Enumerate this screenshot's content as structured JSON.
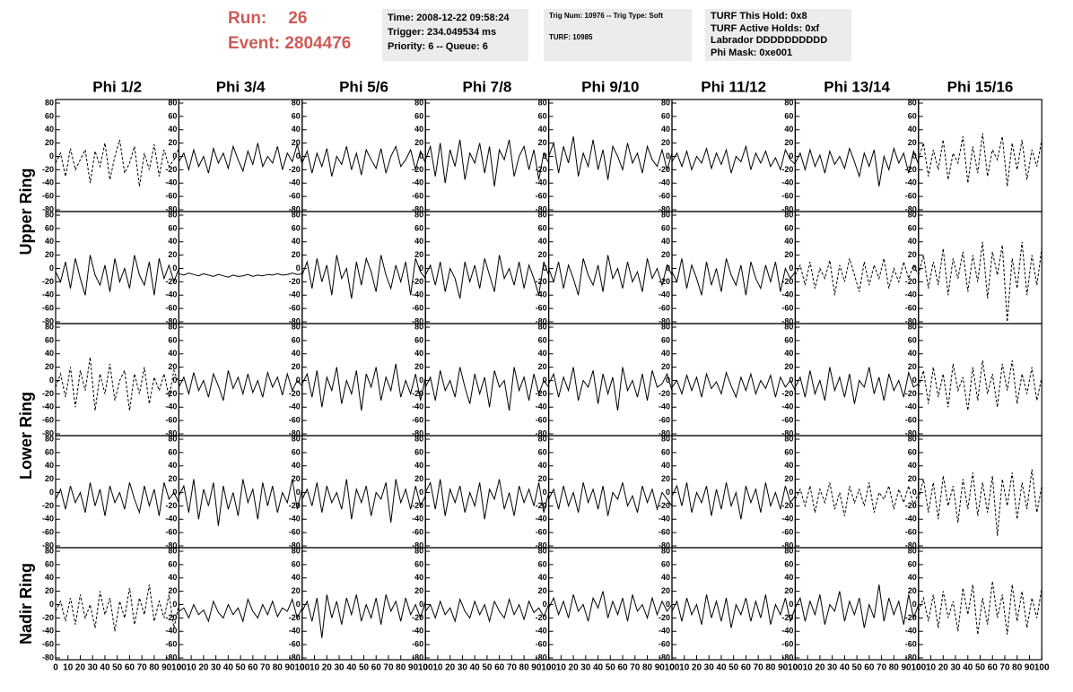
{
  "header": {
    "run_label": "Run:",
    "run": "26",
    "event_label": "Event:",
    "event": "2804476",
    "box1": [
      "Time: 2008-12-22 09:58:24",
      "Trigger: 234.049534 ms",
      "Priority: 6 -- Queue: 6"
    ],
    "box2": [
      "Trig Num: 10976 -- Trig Type: Soft",
      "TURF: 10985"
    ],
    "box3": [
      "TURF This Hold: 0x8",
      "TURF Active Holds: 0xf",
      "Labrador DDDDDDDDDD",
      "Phi Mask: 0xe001"
    ]
  },
  "chart_data": {
    "type": "line",
    "columns": [
      "Phi 1/2",
      "Phi 3/4",
      "Phi 5/6",
      "Phi 7/8",
      "Phi 9/10",
      "Phi 11/12",
      "Phi 13/14",
      "Phi 15/16"
    ],
    "rings": [
      "Upper Ring",
      "Lower Ring",
      "Nadir Ring"
    ],
    "color": "#000000",
    "xlim": [
      0,
      100
    ],
    "xticks": [
      0,
      10,
      20,
      30,
      40,
      50,
      60,
      70,
      80,
      90,
      100
    ],
    "ylim": [
      -80,
      80
    ],
    "yticks": [
      -80,
      -60,
      -40,
      -20,
      0,
      20,
      40,
      60,
      80
    ],
    "grid": false,
    "x": [
      0,
      4,
      8,
      12,
      16,
      20,
      24,
      28,
      32,
      36,
      40,
      44,
      48,
      52,
      56,
      60,
      64,
      68,
      72,
      76,
      80,
      84,
      88,
      92,
      96,
      100
    ],
    "panels": [
      {
        "style": "dashed",
        "values": [
          -10,
          5,
          -30,
          12,
          -20,
          -5,
          10,
          -40,
          8,
          -15,
          20,
          -35,
          0,
          25,
          -25,
          -10,
          15,
          -45,
          5,
          -20,
          18,
          -30,
          10,
          -15,
          -5,
          12
        ]
      },
      {
        "style": "solid",
        "values": [
          -8,
          5,
          -20,
          10,
          -15,
          0,
          -25,
          12,
          -10,
          5,
          -18,
          15,
          -5,
          -22,
          8,
          -12,
          20,
          -15,
          0,
          -10,
          15,
          -20,
          5,
          -8,
          18,
          -12
        ]
      },
      {
        "style": "solid",
        "values": [
          -10,
          8,
          -25,
          5,
          -15,
          12,
          -30,
          0,
          -12,
          15,
          -20,
          5,
          -28,
          10,
          -5,
          -18,
          12,
          -25,
          0,
          15,
          -15,
          -5,
          10,
          -20,
          8,
          -10
        ]
      },
      {
        "style": "solid",
        "values": [
          -5,
          15,
          -30,
          20,
          -40,
          10,
          -15,
          25,
          -35,
          5,
          -10,
          20,
          -25,
          15,
          -45,
          10,
          -5,
          25,
          -30,
          0,
          15,
          -20,
          10,
          -35,
          5,
          -10
        ]
      },
      {
        "style": "solid",
        "values": [
          0,
          20,
          -25,
          15,
          -10,
          30,
          -30,
          5,
          -15,
          25,
          -20,
          10,
          -35,
          15,
          0,
          -20,
          20,
          -10,
          5,
          -25,
          15,
          -5,
          -15,
          10,
          -20,
          5
        ]
      },
      {
        "style": "solid",
        "values": [
          -8,
          5,
          -15,
          8,
          -20,
          0,
          -10,
          12,
          -18,
          5,
          -12,
          10,
          -25,
          0,
          -8,
          15,
          -20,
          5,
          -10,
          8,
          -15,
          -2,
          -20,
          10,
          -5,
          -12
        ]
      },
      {
        "style": "solid",
        "values": [
          -10,
          5,
          -20,
          10,
          -15,
          2,
          -25,
          8,
          -12,
          0,
          -18,
          12,
          -8,
          -30,
          5,
          -15,
          10,
          -45,
          0,
          -20,
          12,
          -10,
          5,
          -25,
          8,
          -12
        ]
      },
      {
        "style": "dashed",
        "values": [
          -5,
          20,
          -30,
          10,
          -20,
          25,
          -35,
          5,
          -10,
          30,
          -40,
          15,
          -25,
          35,
          -30,
          10,
          -5,
          30,
          -45,
          20,
          -20,
          25,
          -35,
          10,
          -15,
          25
        ]
      },
      {
        "style": "solid",
        "values": [
          -5,
          -20,
          10,
          -30,
          15,
          -15,
          -40,
          20,
          -10,
          -25,
          5,
          -35,
          15,
          -20,
          0,
          -30,
          20,
          -10,
          -25,
          10,
          -40,
          15,
          -15,
          5,
          -20,
          0
        ]
      },
      {
        "style": "solid",
        "values": [
          -8,
          -10,
          -7,
          -9,
          -11,
          -8,
          -10,
          -12,
          -9,
          -11,
          -13,
          -10,
          -12,
          -11,
          -9,
          -12,
          -10,
          -11,
          -9,
          -10,
          -8,
          -10,
          -9,
          -7,
          -9,
          -8
        ]
      },
      {
        "style": "solid",
        "values": [
          -10,
          10,
          -30,
          15,
          -20,
          5,
          -40,
          20,
          -15,
          0,
          -45,
          10,
          -25,
          15,
          -5,
          -35,
          20,
          -10,
          -30,
          5,
          -20,
          10,
          -40,
          15,
          -5,
          -15
        ]
      },
      {
        "style": "solid",
        "values": [
          -10,
          5,
          -25,
          10,
          -35,
          0,
          -15,
          -45,
          10,
          -20,
          5,
          -30,
          15,
          -10,
          -35,
          20,
          -15,
          0,
          -25,
          10,
          -30,
          5,
          -15,
          -40,
          10,
          -10
        ]
      },
      {
        "style": "solid",
        "values": [
          0,
          -20,
          10,
          -30,
          5,
          -15,
          -40,
          15,
          -10,
          -25,
          5,
          -35,
          20,
          -15,
          0,
          -30,
          10,
          -20,
          -5,
          -35,
          15,
          -15,
          0,
          -25,
          5,
          -10
        ]
      },
      {
        "style": "solid",
        "values": [
          -5,
          -20,
          15,
          -30,
          5,
          -15,
          -40,
          10,
          -25,
          0,
          -35,
          15,
          -10,
          -25,
          5,
          -40,
          10,
          -15,
          -30,
          5,
          -20,
          10,
          -35,
          0,
          -15,
          -5
        ]
      },
      {
        "style": "dashed",
        "values": [
          -10,
          5,
          -25,
          10,
          -30,
          0,
          -15,
          12,
          -40,
          5,
          -20,
          15,
          -10,
          -35,
          10,
          -25,
          5,
          -15,
          15,
          -30,
          0,
          -20,
          10,
          -15,
          5,
          -10
        ]
      },
      {
        "style": "dashed",
        "values": [
          -10,
          20,
          -30,
          10,
          -25,
          30,
          -40,
          15,
          -15,
          25,
          -35,
          20,
          -20,
          40,
          -45,
          25,
          -10,
          35,
          -80,
          15,
          -30,
          40,
          -40,
          20,
          -25,
          30
        ]
      },
      {
        "style": "dashed",
        "values": [
          -10,
          10,
          -25,
          20,
          -40,
          15,
          -15,
          35,
          -45,
          10,
          -20,
          25,
          -30,
          0,
          15,
          -45,
          10,
          -20,
          20,
          -35,
          5,
          -15,
          10,
          -25,
          15,
          -5
        ]
      },
      {
        "style": "solid",
        "values": [
          -10,
          5,
          -20,
          12,
          -15,
          0,
          -25,
          10,
          -8,
          -30,
          15,
          -12,
          5,
          -20,
          10,
          -18,
          0,
          -25,
          12,
          -10,
          5,
          -22,
          10,
          -15,
          0,
          -8
        ]
      },
      {
        "style": "solid",
        "values": [
          -5,
          10,
          -25,
          15,
          -40,
          5,
          -15,
          20,
          -35,
          0,
          -20,
          15,
          -45,
          10,
          -10,
          20,
          -30,
          5,
          -15,
          25,
          -25,
          0,
          -20,
          10,
          -30,
          5
        ]
      },
      {
        "style": "solid",
        "values": [
          -10,
          5,
          -30,
          15,
          -15,
          0,
          -25,
          20,
          -10,
          -35,
          10,
          -20,
          5,
          -40,
          15,
          -10,
          0,
          -45,
          20,
          -15,
          5,
          -30,
          10,
          -20,
          0,
          -10
        ]
      },
      {
        "style": "solid",
        "values": [
          -5,
          10,
          -25,
          5,
          -15,
          20,
          -30,
          0,
          -10,
          15,
          -35,
          10,
          -20,
          5,
          -45,
          20,
          -15,
          0,
          -25,
          10,
          -30,
          15,
          -10,
          -5,
          10,
          -15
        ]
      },
      {
        "style": "solid",
        "values": [
          -10,
          0,
          -20,
          8,
          -15,
          5,
          -25,
          10,
          -12,
          -2,
          -20,
          12,
          -8,
          -25,
          5,
          -15,
          10,
          -20,
          0,
          -12,
          8,
          -25,
          5,
          -10,
          0,
          -15
        ]
      },
      {
        "style": "solid",
        "values": [
          -10,
          5,
          -25,
          15,
          -20,
          0,
          -30,
          20,
          -15,
          5,
          -25,
          10,
          -35,
          0,
          -10,
          20,
          -20,
          5,
          -30,
          10,
          -15,
          0,
          -25,
          12,
          -10,
          -5
        ]
      },
      {
        "style": "dashed",
        "values": [
          -10,
          15,
          -35,
          20,
          -25,
          10,
          -40,
          25,
          -15,
          5,
          -45,
          20,
          -30,
          30,
          -20,
          10,
          -40,
          25,
          -15,
          30,
          -35,
          10,
          -20,
          20,
          -30,
          5
        ]
      },
      {
        "style": "solid",
        "values": [
          -10,
          5,
          -25,
          10,
          -15,
          0,
          -30,
          15,
          -20,
          5,
          -35,
          10,
          -15,
          0,
          -25,
          15,
          -10,
          -30,
          10,
          -20,
          5,
          -35,
          15,
          -10,
          0,
          -15
        ]
      },
      {
        "style": "solid",
        "values": [
          -5,
          10,
          -30,
          20,
          -40,
          5,
          -20,
          15,
          -50,
          10,
          -25,
          0,
          -35,
          20,
          -15,
          5,
          -40,
          15,
          -20,
          10,
          -30,
          0,
          -15,
          20,
          -25,
          5
        ]
      },
      {
        "style": "solid",
        "values": [
          -10,
          5,
          -20,
          15,
          -30,
          10,
          -15,
          0,
          -25,
          20,
          -40,
          5,
          -15,
          10,
          -35,
          0,
          -10,
          15,
          -45,
          20,
          -15,
          5,
          -25,
          10,
          -20,
          -5
        ]
      },
      {
        "style": "solid",
        "values": [
          0,
          15,
          -25,
          20,
          -35,
          5,
          -15,
          10,
          -30,
          0,
          -20,
          15,
          -40,
          5,
          -10,
          20,
          -25,
          0,
          -35,
          10,
          -15,
          5,
          -20,
          15,
          -30,
          0
        ]
      },
      {
        "style": "solid",
        "values": [
          -10,
          5,
          -25,
          10,
          -20,
          0,
          -30,
          15,
          -15,
          5,
          -25,
          10,
          -35,
          0,
          -10,
          15,
          -20,
          -5,
          -30,
          10,
          -15,
          5,
          -25,
          0,
          -10,
          -20
        ]
      },
      {
        "style": "solid",
        "values": [
          -5,
          10,
          -20,
          15,
          -30,
          0,
          -15,
          10,
          -35,
          5,
          -25,
          15,
          -20,
          0,
          -40,
          10,
          -15,
          5,
          -30,
          15,
          -20,
          0,
          -25,
          10,
          -15,
          -5
        ]
      },
      {
        "style": "dashed",
        "values": [
          -10,
          5,
          -20,
          10,
          -30,
          5,
          -15,
          15,
          -25,
          0,
          -35,
          10,
          -15,
          5,
          -20,
          15,
          -30,
          0,
          -10,
          10,
          -25,
          5,
          -15,
          10,
          -20,
          0
        ]
      },
      {
        "style": "dashed",
        "values": [
          -10,
          20,
          -30,
          15,
          -40,
          25,
          -20,
          10,
          -45,
          20,
          -25,
          30,
          -35,
          15,
          -30,
          25,
          -65,
          20,
          -20,
          30,
          -40,
          15,
          -25,
          35,
          -30,
          10
        ]
      },
      {
        "style": "dashed",
        "values": [
          -10,
          5,
          -25,
          10,
          -30,
          15,
          -20,
          0,
          -35,
          20,
          -15,
          10,
          -40,
          5,
          -20,
          25,
          -30,
          10,
          -15,
          30,
          -25,
          5,
          -20,
          15,
          -35,
          0
        ]
      },
      {
        "style": "solid",
        "values": [
          -10,
          -5,
          -20,
          0,
          -15,
          -8,
          -25,
          5,
          -12,
          -20,
          0,
          -15,
          -5,
          -25,
          8,
          -10,
          -20,
          0,
          -15,
          5,
          -18,
          -5,
          -10,
          8,
          -20,
          -5
        ]
      },
      {
        "style": "solid",
        "values": [
          -10,
          5,
          -25,
          10,
          -50,
          15,
          -20,
          5,
          -30,
          10,
          -15,
          15,
          -25,
          0,
          -20,
          10,
          -30,
          15,
          -10,
          5,
          -25,
          10,
          -15,
          0,
          -20,
          5
        ]
      },
      {
        "style": "solid",
        "values": [
          -10,
          0,
          -20,
          5,
          -15,
          -5,
          -25,
          8,
          -10,
          -20,
          5,
          -15,
          0,
          -25,
          5,
          -10,
          -20,
          8,
          -15,
          0,
          -22,
          5,
          -12,
          -5,
          -18,
          0
        ]
      },
      {
        "style": "solid",
        "values": [
          -5,
          10,
          -15,
          5,
          -20,
          15,
          -10,
          0,
          -25,
          10,
          -5,
          20,
          -20,
          5,
          -15,
          10,
          -25,
          15,
          -10,
          0,
          -20,
          10,
          -15,
          5,
          -10,
          0
        ]
      },
      {
        "style": "solid",
        "values": [
          -10,
          5,
          -25,
          10,
          -15,
          0,
          -30,
          15,
          -20,
          5,
          -25,
          10,
          -35,
          0,
          -15,
          10,
          -25,
          5,
          -20,
          15,
          -30,
          0,
          -15,
          10,
          -25,
          -5
        ]
      },
      {
        "style": "solid",
        "values": [
          -5,
          10,
          -25,
          5,
          -15,
          15,
          -30,
          0,
          -10,
          20,
          -25,
          5,
          -15,
          10,
          -35,
          0,
          -20,
          30,
          -25,
          10,
          -15,
          5,
          -30,
          15,
          -20,
          0
        ]
      },
      {
        "style": "dashed",
        "values": [
          -10,
          10,
          -25,
          15,
          -35,
          20,
          -20,
          5,
          -40,
          25,
          -15,
          30,
          -45,
          10,
          -30,
          35,
          -20,
          15,
          -45,
          30,
          -25,
          20,
          -35,
          10,
          -20,
          25
        ]
      }
    ]
  }
}
